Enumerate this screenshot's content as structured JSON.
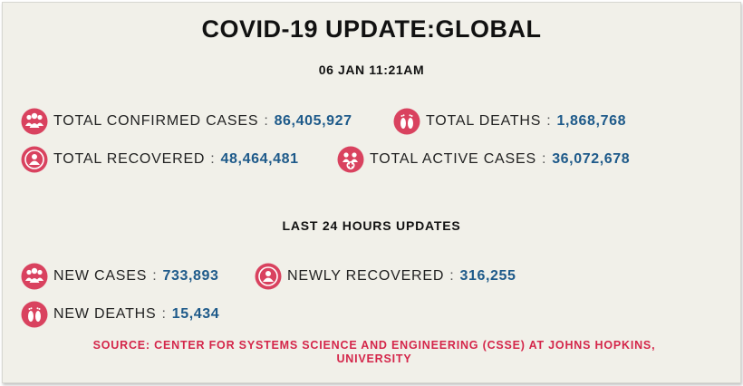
{
  "header": {
    "title": "COVID-19 UPDATE:GLOBAL",
    "timestamp": "06 JAN 11:21AM"
  },
  "totals": {
    "confirmed": {
      "label": "TOTAL CONFIRMED CASES",
      "value": "86,405,927",
      "icon": "people-group-icon"
    },
    "deaths": {
      "label": "TOTAL DEATHS",
      "value": "1,868,768",
      "icon": "footprints-icon"
    },
    "recovered": {
      "label": "TOTAL RECOVERED",
      "value": "48,464,481",
      "icon": "recovered-person-icon"
    },
    "active": {
      "label": "TOTAL ACTIVE CASES",
      "value": "36,072,678",
      "icon": "people-medical-cross-icon"
    }
  },
  "last24": {
    "heading": "LAST 24 HOURS UPDATES",
    "new_cases": {
      "label": "NEW CASES",
      "value": "733,893",
      "icon": "people-group-icon"
    },
    "newly_recovered": {
      "label": "NEWLY RECOVERED",
      "value": "316,255",
      "icon": "recovered-person-icon"
    },
    "new_deaths": {
      "label": "NEW DEATHS",
      "value": "15,434",
      "icon": "footprints-icon"
    }
  },
  "source": {
    "line1": "SOURCE: CENTER FOR SYSTEMS SCIENCE AND ENGINEERING (CSSE) AT JOHNS HOPKINS,",
    "line2": "UNIVERSITY"
  },
  "colors": {
    "background": "#f1f0e9",
    "value_blue": "#1e5a8a",
    "icon_red": "#d9425f",
    "source_red": "#d4264a"
  }
}
